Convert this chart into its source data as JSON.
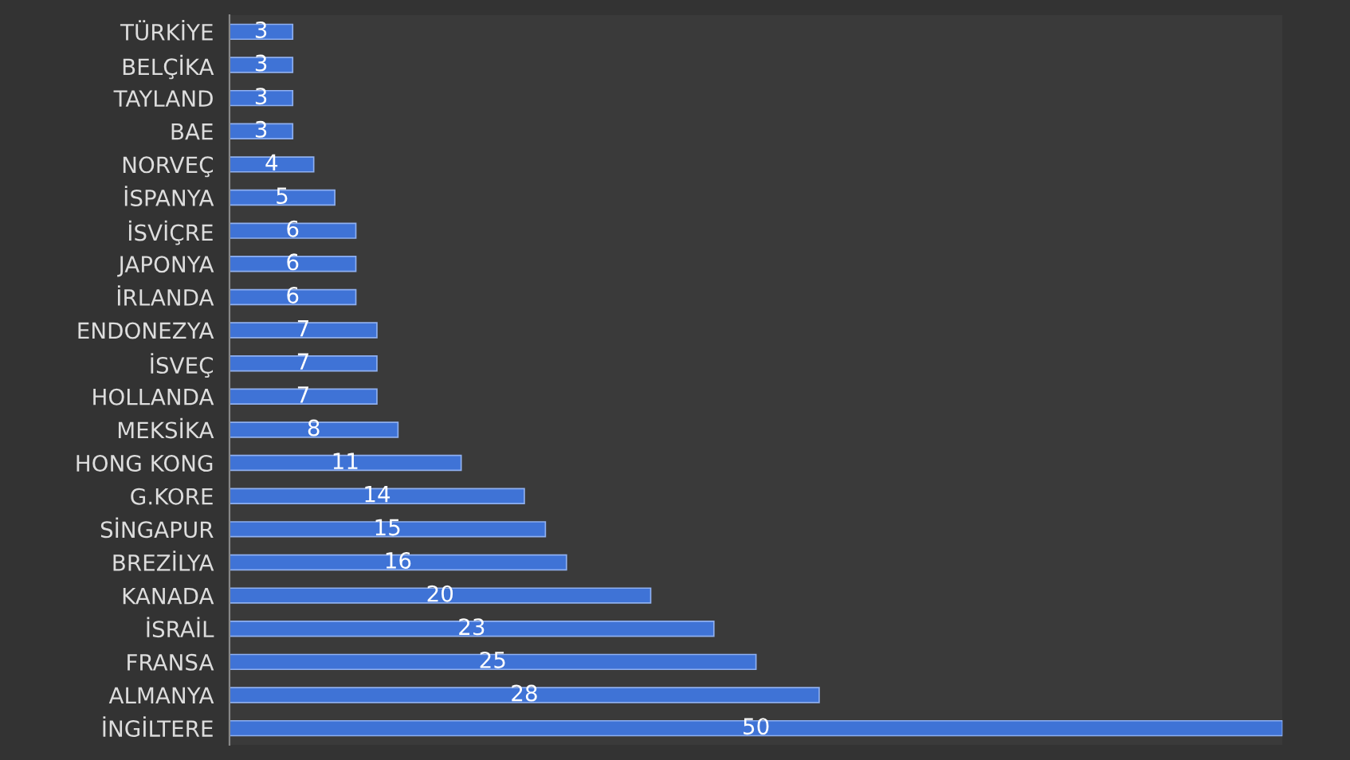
{
  "chart_data": {
    "type": "bar",
    "orientation": "horizontal",
    "categories": [
      "TÜRKİYE",
      "BELÇİKA",
      "TAYLAND",
      "BAE",
      "NORVEÇ",
      "İSPANYA",
      "İSVİÇRE",
      "JAPONYA",
      "İRLANDA",
      "ENDONEZYA",
      "İSVEÇ",
      "HOLLANDA",
      "MEKSİKA",
      "HONG KONG",
      "G.KORE",
      "SİNGAPUR",
      "BREZİLYA",
      "KANADA",
      "İSRAİL",
      "FRANSA",
      "ALMANYA",
      "İNGİLTERE"
    ],
    "values": [
      3,
      3,
      3,
      3,
      4,
      5,
      6,
      6,
      6,
      7,
      7,
      7,
      8,
      11,
      14,
      15,
      16,
      20,
      23,
      25,
      28,
      50
    ],
    "color": "#3f73d6",
    "xlim": [
      0,
      50
    ],
    "tick_labels": "y",
    "data_labels": true
  }
}
